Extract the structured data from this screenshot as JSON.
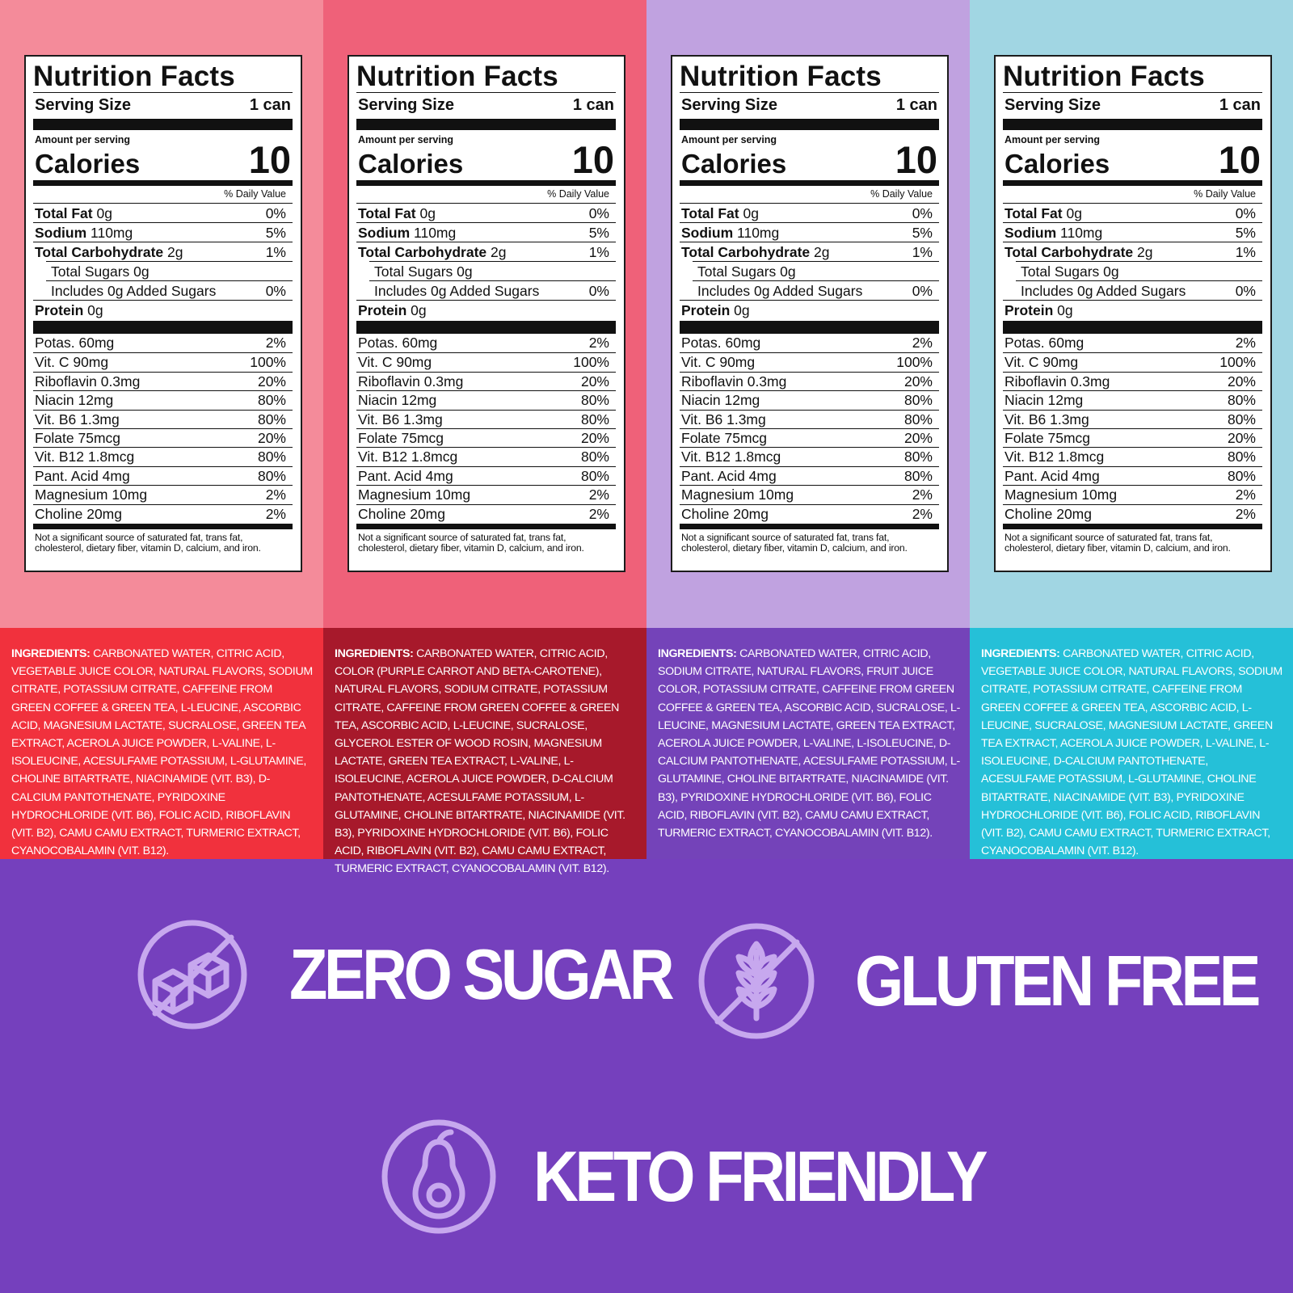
{
  "columns": [
    {
      "id": "red",
      "top_color": "#f48b9a",
      "ingredients_bg": "#f1313d",
      "ingredients_label": "INGREDIENTS:",
      "ingredients_text": " CARBONATED WATER, CITRIC ACID, VEGETABLE JUICE COLOR, NATURAL FLAVORS, SODIUM CITRATE, POTASSIUM CITRATE, CAFFEINE FROM GREEN COFFEE & GREEN TEA, L-LEUCINE, ASCORBIC ACID, MAGNESIUM LACTATE, SUCRALOSE, GREEN TEA EXTRACT, ACEROLA JUICE POWDER, L-VALINE, L-ISOLEUCINE, ACESULFAME POTASSIUM, L-GLUTAMINE, CHOLINE BITARTRATE, NIACINAMIDE (VIT. B3), D-CALCIUM PANTOTHENATE, PYRIDOXINE HYDROCHLORIDE (VIT. B6), FOLIC ACID, RIBOFLAVIN (VIT. B2), CAMU CAMU EXTRACT, TURMERIC EXTRACT, CYANOCOBALAMIN (VIT. B12)."
    },
    {
      "id": "crimson",
      "top_color": "#ef6179",
      "ingredients_bg": "#a7192b",
      "ingredients_label": "INGREDIENTS:",
      "ingredients_text": " CARBONATED WATER, CITRIC ACID, COLOR (PURPLE CARROT AND BETA-CAROTENE), NATURAL FLAVORS, SODIUM CITRATE, POTASSIUM CITRATE, CAFFEINE FROM GREEN COFFEE & GREEN TEA, ASCORBIC ACID, L-LEUCINE, SUCRALOSE, GLYCEROL ESTER OF WOOD ROSIN, MAGNESIUM LACTATE, GREEN TEA EXTRACT, L-VALINE, L-ISOLEUCINE, ACEROLA JUICE POWDER, D-CALCIUM PANTOTHENATE, ACESULFAME POTASSIUM, L-GLUTAMINE, CHOLINE BITARTRATE, NIACINAMIDE (VIT. B3), PYRIDOXINE HYDROCHLORIDE (VIT. B6), FOLIC ACID, RIBOFLAVIN (VIT. B2), CAMU CAMU EXTRACT, TURMERIC EXTRACT, CYANOCOBALAMIN (VIT. B12)."
    },
    {
      "id": "lavender",
      "top_color": "#c0a2e0",
      "ingredients_bg": "#7443b9",
      "ingredients_label": "INGREDIENTS:",
      "ingredients_text": " CARBONATED WATER, CITRIC ACID, SODIUM CITRATE, NATURAL FLAVORS, FRUIT JUICE COLOR, POTASSIUM CITRATE, CAFFEINE FROM GREEN COFFEE & GREEN TEA, ASCORBIC ACID, SUCRALOSE, L-LEUCINE, MAGNESIUM LACTATE, GREEN TEA EXTRACT, ACEROLA JUICE POWDER, L-VALINE, L-ISOLEUCINE, D-CALCIUM PANTOTHENATE, ACESULFAME POTASSIUM, L-GLUTAMINE, CHOLINE BITARTRATE, NIACINAMIDE (VIT. B3), PYRIDOXINE HYDROCHLORIDE (VIT. B6), FOLIC ACID, RIBOFLAVIN (VIT. B2), CAMU CAMU EXTRACT, TURMERIC EXTRACT, CYANOCOBALAMIN (VIT. B12)."
    },
    {
      "id": "aqua",
      "top_color": "#a1d6e3",
      "ingredients_bg": "#25c0d8",
      "ingredients_label": "INGREDIENTS:",
      "ingredients_text": " CARBONATED WATER, CITRIC ACID, VEGETABLE JUICE COLOR, NATURAL FLAVORS, SODIUM CITRATE, POTASSIUM CITRATE, CAFFEINE FROM GREEN COFFEE & GREEN TEA, ASCORBIC ACID, L-LEUCINE, SUCRALOSE, MAGNESIUM LACTATE, GREEN TEA EXTRACT, ACEROLA JUICE POWDER, L-VALINE, L-ISOLEUCINE, D-CALCIUM PANTOTHENATE, ACESULFAME POTASSIUM, L-GLUTAMINE, CHOLINE BITARTRATE, NIACINAMIDE (VIT. B3), PYRIDOXINE HYDROCHLORIDE (VIT. B6), FOLIC ACID, RIBOFLAVIN (VIT. B2), CAMU CAMU EXTRACT, TURMERIC EXTRACT, CYANOCOBALAMIN (VIT. B12)."
    }
  ],
  "label": {
    "title": "Nutrition Facts",
    "serving_label": "Serving Size",
    "serving_value": "1 can",
    "amount_per_serving": "Amount per serving",
    "calories_label": "Calories",
    "calories_value": "10",
    "daily_value_header": "% Daily Value",
    "nutrients": [
      {
        "name": "Total Fat",
        "amount": " 0g",
        "dv": "0%",
        "bold": true,
        "indent": false
      },
      {
        "name": "Sodium",
        "amount": " 110mg",
        "dv": "5%",
        "bold": true,
        "indent": false
      },
      {
        "name": "Total Carbohydrate",
        "amount": " 2g",
        "dv": "1%",
        "bold": true,
        "indent": false
      },
      {
        "name": "Total Sugars 0g",
        "amount": "",
        "dv": "",
        "bold": false,
        "indent": true
      },
      {
        "name": "Includes 0g Added Sugars",
        "amount": "",
        "dv": "0%",
        "bold": false,
        "indent": true
      },
      {
        "name": "Protein",
        "amount": " 0g",
        "dv": "",
        "bold": true,
        "indent": false
      }
    ],
    "vitamins": [
      {
        "name": "Potas. 60mg",
        "dv": "2%"
      },
      {
        "name": "Vit. C 90mg",
        "dv": "100%"
      },
      {
        "name": "Riboflavin 0.3mg",
        "dv": "20%"
      },
      {
        "name": "Niacin 12mg",
        "dv": "80%"
      },
      {
        "name": "Vit. B6 1.3mg",
        "dv": "80%"
      },
      {
        "name": "Folate 75mcg",
        "dv": "20%"
      },
      {
        "name": "Vit. B12 1.8mcg",
        "dv": "80%"
      },
      {
        "name": "Pant. Acid 4mg",
        "dv": "80%"
      },
      {
        "name": "Magnesium 10mg",
        "dv": "2%"
      },
      {
        "name": "Choline 20mg",
        "dv": "2%"
      }
    ],
    "footnote": "Not a significant source of saturated fat, trans fat, cholesterol, dietary fiber, vitamin D, calcium, and iron."
  },
  "badges": {
    "zero_sugar": {
      "text": "ZERO SUGAR",
      "icon": "sugar-cubes-crossed-icon"
    },
    "gluten_free": {
      "text": "GLUTEN FREE",
      "icon": "wheat-crossed-icon"
    },
    "keto_friendly": {
      "text": "KETO FRIENDLY",
      "icon": "avocado-icon"
    }
  },
  "colors": {
    "bottom_bg": "#7540bd",
    "icon_stroke": "#c7a8ee"
  }
}
